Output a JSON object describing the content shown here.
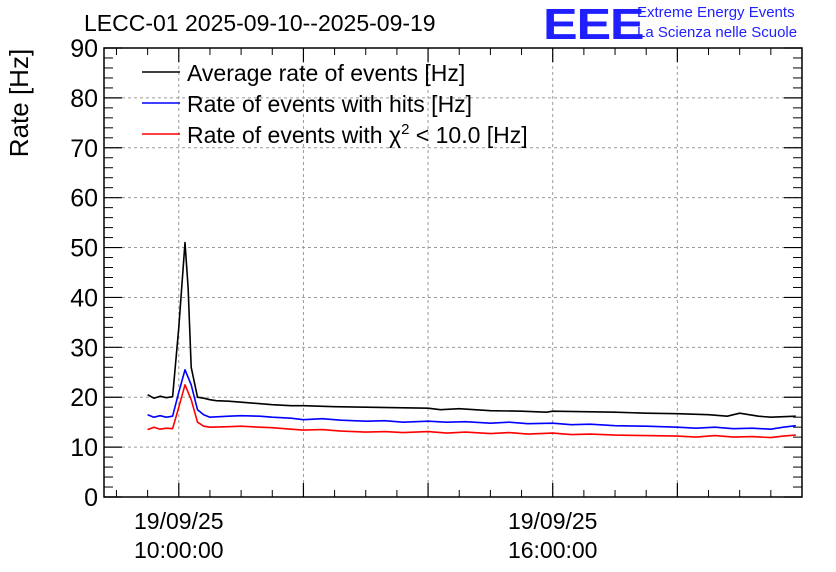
{
  "chart_data": {
    "type": "line",
    "title": "LECC-01 2025-09-10--2025-09-19",
    "ylabel": "Rate [Hz]",
    "xlabel": "",
    "ylim": [
      0,
      90
    ],
    "yticks": [
      0,
      10,
      20,
      30,
      40,
      50,
      60,
      70,
      80,
      90
    ],
    "xlim_hours": [
      8.8,
      20.0
    ],
    "xticks": [
      {
        "x": 10.0,
        "date": "19/09/25",
        "time": "10:00:00"
      },
      {
        "x": 16.0,
        "date": "19/09/25",
        "time": "16:00:00"
      }
    ],
    "grid": true,
    "legend_position": "top-left",
    "series": [
      {
        "name": "Average rate of events [Hz]",
        "color": "#000000",
        "x": [
          9.5,
          9.6,
          9.7,
          9.8,
          9.9,
          10.0,
          10.1,
          10.15,
          10.2,
          10.3,
          10.4,
          10.5,
          10.6,
          10.8,
          11.0,
          11.2,
          11.5,
          11.8,
          12.0,
          12.5,
          13.0,
          13.5,
          14.0,
          14.2,
          14.5,
          15.0,
          15.5,
          15.9,
          16.0,
          16.5,
          17.0,
          17.5,
          18.0,
          18.5,
          18.8,
          19.0,
          19.3,
          19.5,
          19.7,
          19.9
        ],
        "values": [
          20.5,
          19.8,
          20.2,
          19.9,
          20.1,
          34.0,
          51.0,
          42.0,
          26.0,
          20.0,
          19.8,
          19.5,
          19.3,
          19.2,
          19.0,
          18.8,
          18.5,
          18.3,
          18.3,
          18.1,
          18.0,
          17.9,
          17.8,
          17.5,
          17.7,
          17.3,
          17.2,
          17.0,
          17.2,
          17.1,
          17.0,
          16.8,
          16.7,
          16.5,
          16.2,
          16.8,
          16.2,
          16.0,
          16.1,
          16.2
        ]
      },
      {
        "name": "Rate of events with hits [Hz]",
        "color": "#0000ff",
        "x": [
          9.5,
          9.6,
          9.7,
          9.8,
          9.9,
          10.0,
          10.1,
          10.2,
          10.3,
          10.4,
          10.5,
          10.8,
          11.0,
          11.3,
          11.5,
          11.8,
          12.0,
          12.3,
          12.6,
          13.0,
          13.3,
          13.6,
          14.0,
          14.3,
          14.6,
          15.0,
          15.3,
          15.6,
          16.0,
          16.3,
          16.6,
          17.0,
          17.5,
          18.0,
          18.3,
          18.6,
          18.9,
          19.2,
          19.5,
          19.7,
          19.9
        ],
        "values": [
          16.5,
          16.0,
          16.3,
          16.0,
          16.2,
          21.0,
          25.5,
          22.5,
          17.5,
          16.5,
          16.0,
          16.2,
          16.3,
          16.2,
          16.0,
          15.8,
          15.5,
          15.7,
          15.4,
          15.2,
          15.3,
          15.0,
          15.2,
          15.0,
          15.1,
          14.8,
          15.0,
          14.7,
          14.8,
          14.5,
          14.6,
          14.3,
          14.2,
          14.0,
          13.8,
          14.0,
          13.7,
          13.8,
          13.6,
          14.0,
          14.3
        ]
      },
      {
        "name": "Rate of events with χ² < 10.0 [Hz]",
        "color": "#ff0000",
        "x": [
          9.5,
          9.6,
          9.7,
          9.8,
          9.9,
          10.0,
          10.1,
          10.2,
          10.3,
          10.4,
          10.5,
          10.8,
          11.0,
          11.3,
          11.5,
          11.8,
          12.0,
          12.3,
          12.6,
          13.0,
          13.3,
          13.6,
          14.0,
          14.3,
          14.6,
          15.0,
          15.3,
          15.6,
          16.0,
          16.3,
          16.6,
          17.0,
          17.5,
          18.0,
          18.3,
          18.6,
          18.9,
          19.2,
          19.5,
          19.7,
          19.9
        ],
        "values": [
          13.5,
          14.0,
          13.6,
          13.8,
          13.7,
          18.0,
          22.5,
          19.5,
          15.0,
          14.2,
          14.0,
          14.1,
          14.2,
          14.0,
          13.9,
          13.6,
          13.4,
          13.5,
          13.2,
          13.0,
          13.1,
          12.9,
          13.1,
          12.8,
          13.0,
          12.7,
          12.9,
          12.6,
          12.8,
          12.5,
          12.6,
          12.4,
          12.3,
          12.2,
          12.0,
          12.3,
          12.0,
          12.1,
          11.9,
          12.2,
          12.4
        ]
      }
    ]
  },
  "logo": {
    "text": "EEE",
    "line1": "Extreme Energy Events",
    "line2": "La Scienza nelle Scuole",
    "color": "#1f1fff"
  },
  "legend_texts": {
    "chi_prefix": "Rate of events with ",
    "chi_symbol": "χ",
    "chi_sup": "2",
    "chi_suffix": " < 10.0 [Hz]"
  }
}
